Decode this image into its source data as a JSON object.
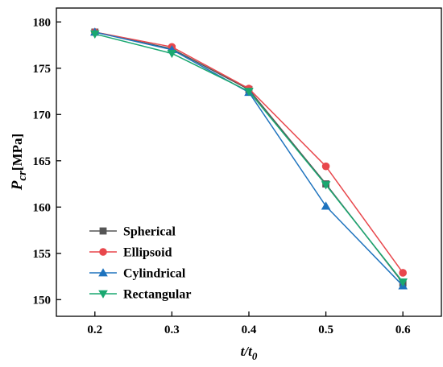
{
  "chart_data": {
    "type": "line",
    "title": "",
    "xlabel": {
      "main": "t/t",
      "subscript": "0"
    },
    "ylabel": {
      "main": "P",
      "subscript": "cr",
      "unit": "[MPa]"
    },
    "x": [
      0.2,
      0.3,
      0.4,
      0.5,
      0.6
    ],
    "x_tick_labels": [
      "0.2",
      "0.3",
      "0.4",
      "0.5",
      "0.6"
    ],
    "xlim": [
      0.15,
      0.65
    ],
    "y_ticks": [
      150,
      155,
      160,
      165,
      170,
      175,
      180
    ],
    "y_tick_labels": [
      "150",
      "155",
      "160",
      "165",
      "170",
      "175",
      "180"
    ],
    "ylim": [
      148.2,
      181.5
    ],
    "grid": false,
    "legend_position": "bottom-left",
    "series": [
      {
        "name": "Spherical",
        "color": "#555555",
        "marker": "square",
        "values": [
          178.9,
          177.1,
          172.7,
          162.5,
          151.8
        ]
      },
      {
        "name": "Ellipsoid",
        "color": "#e8474c",
        "marker": "circle",
        "values": [
          178.9,
          177.3,
          172.8,
          164.4,
          152.9
        ]
      },
      {
        "name": "Cylindrical",
        "color": "#1e73be",
        "marker": "triangle-up",
        "values": [
          178.9,
          177.0,
          172.4,
          160.1,
          151.5
        ]
      },
      {
        "name": "Rectangular",
        "color": "#1aa870",
        "marker": "triangle-down",
        "values": [
          178.7,
          176.6,
          172.5,
          162.4,
          151.9
        ]
      }
    ]
  }
}
